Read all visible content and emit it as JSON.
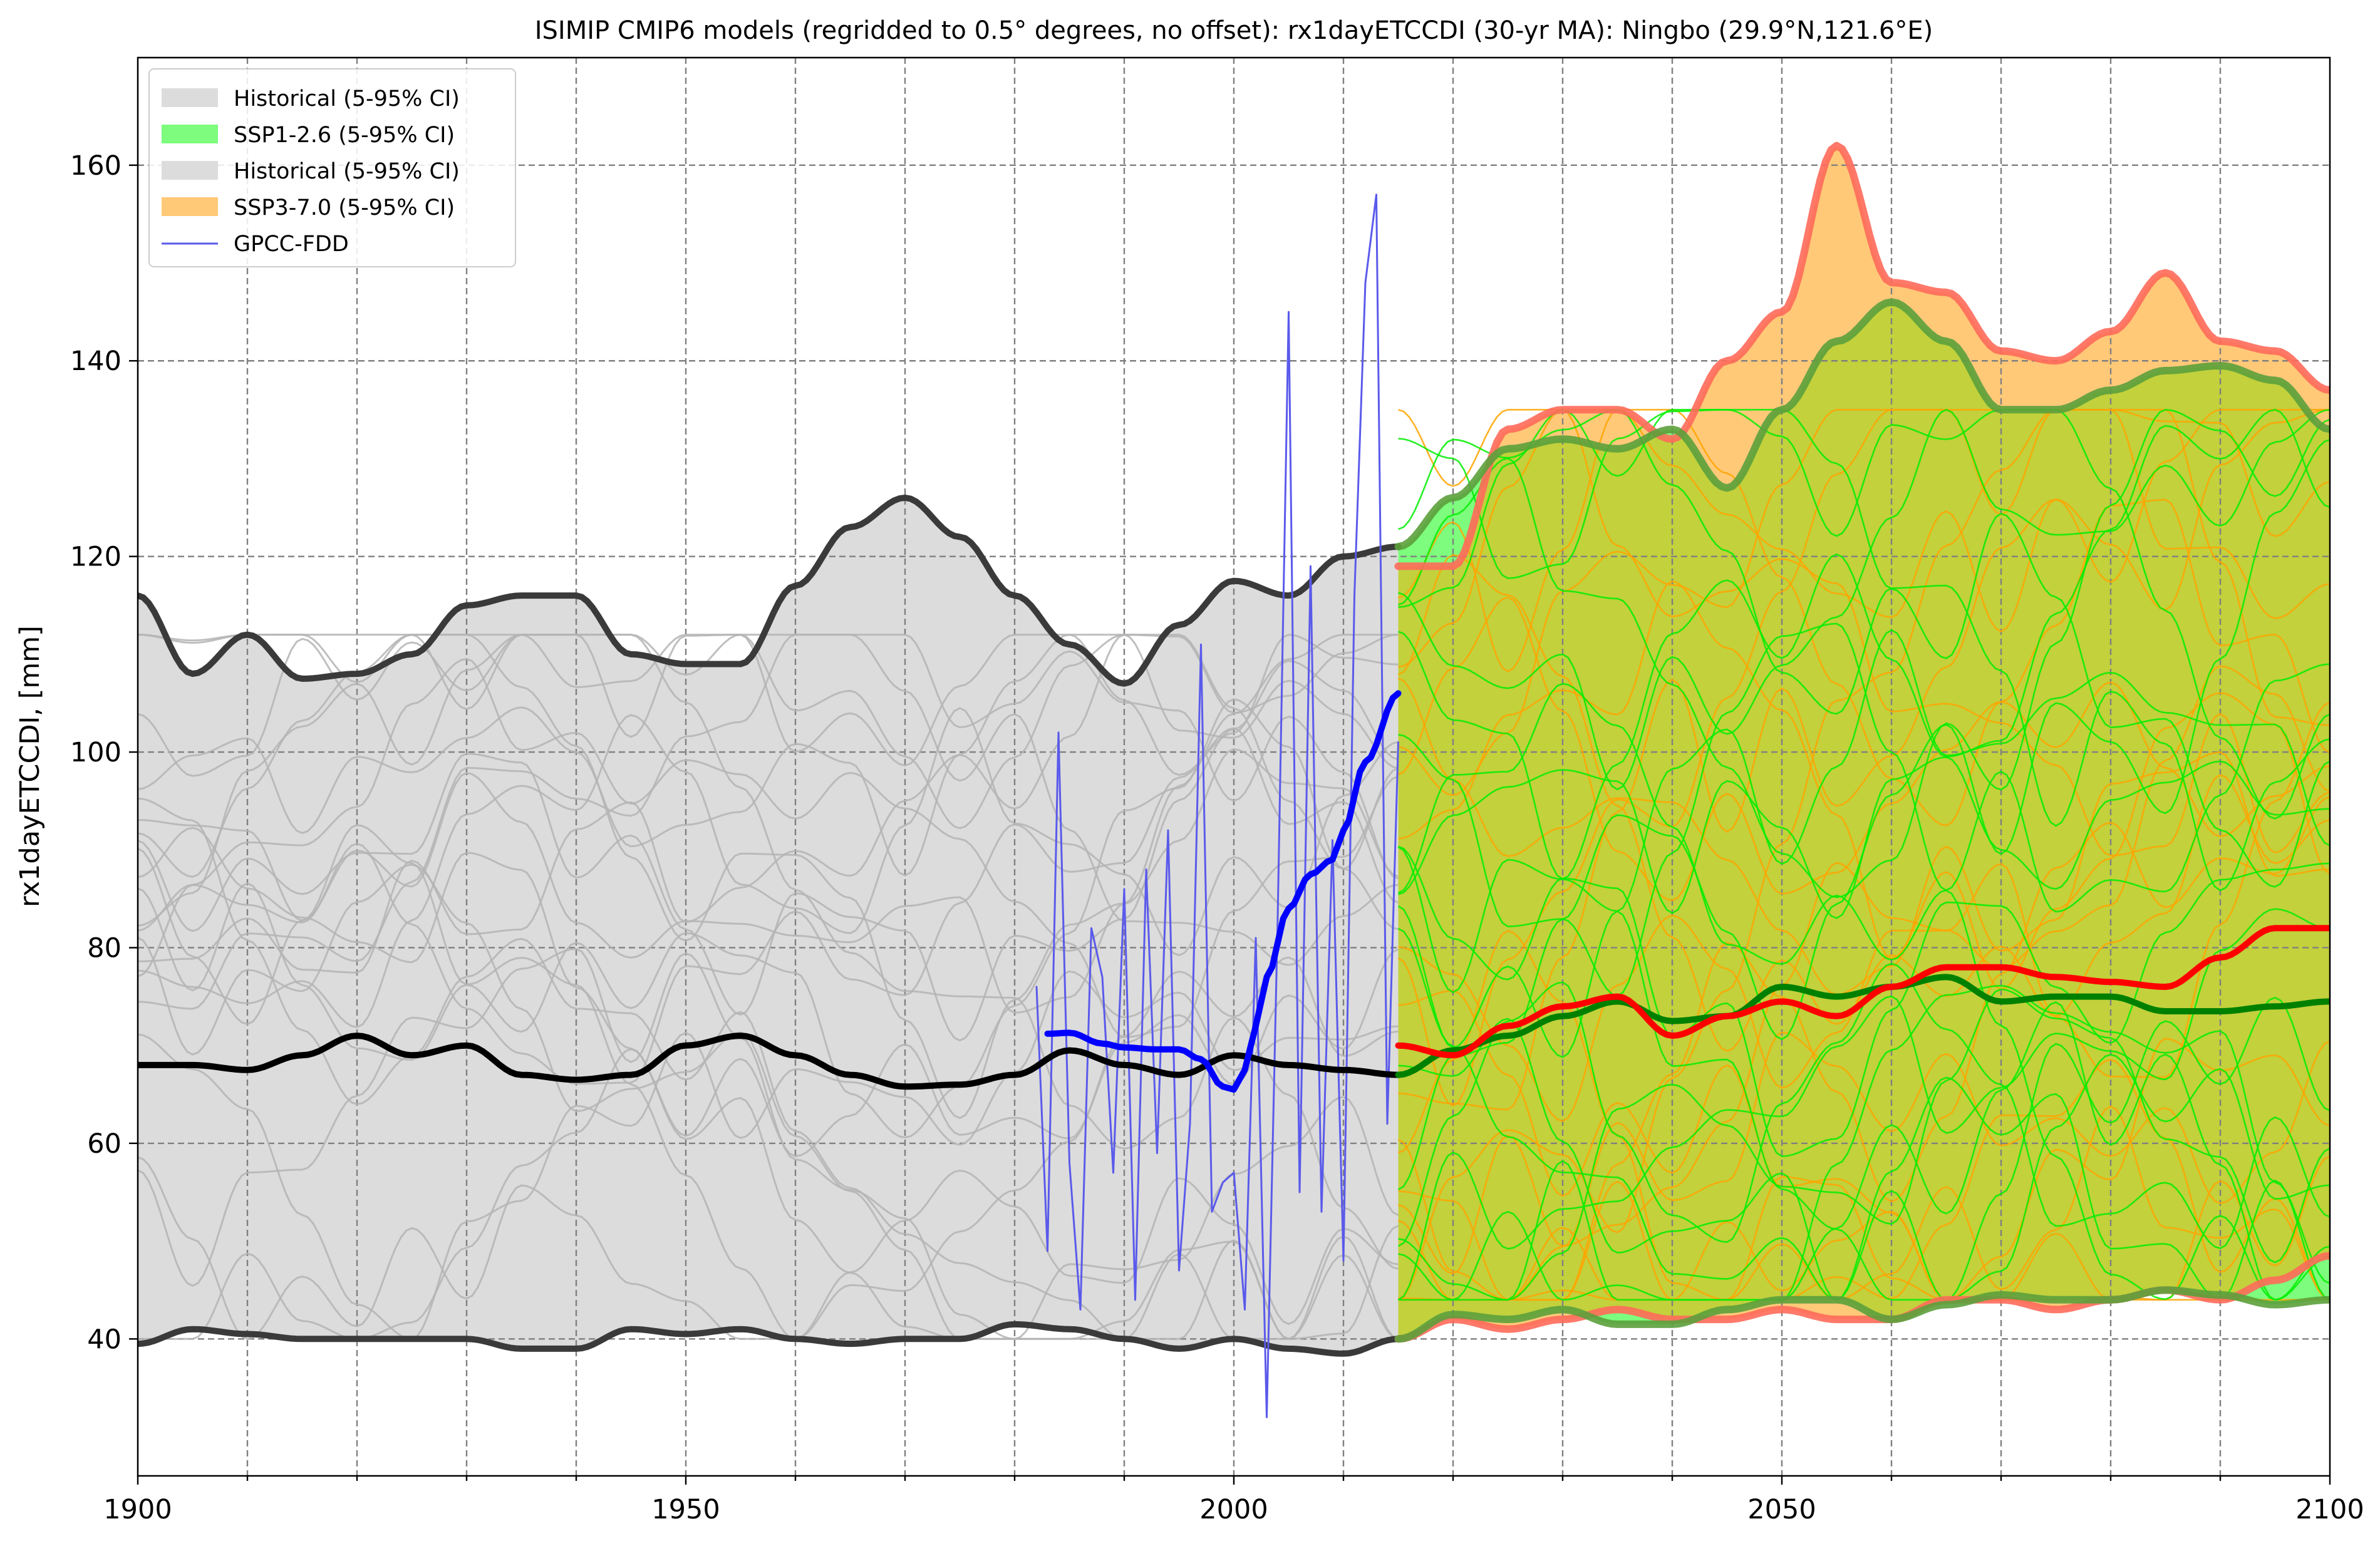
{
  "chart_data": {
    "type": "line",
    "title": "ISIMIP CMIP6 models (regridded to 0.5° degrees, no offset): rx1dayETCCDI (30-yr MA): Ningbo (29.9°N,121.6°E)",
    "xlabel": "",
    "ylabel": "rx1dayETCCDI, [mm]",
    "xlim": [
      1900,
      2100
    ],
    "ylim": [
      26,
      171
    ],
    "x_ticks": [
      1900,
      1950,
      2000,
      2050,
      2100
    ],
    "x_minor_ticks": [
      1910,
      1920,
      1930,
      1940,
      1960,
      1970,
      1980,
      1990,
      2010,
      2020,
      2030,
      2040,
      2060,
      2070,
      2080,
      2090
    ],
    "y_ticks": [
      40,
      60,
      80,
      100,
      120,
      140,
      160
    ],
    "grid": true,
    "legend_position": "top-left",
    "legend": [
      {
        "label": "Historical (5-95% CI)",
        "kind": "patch",
        "color": "#dcdcdc"
      },
      {
        "label": "SSP1-2.6 (5-95% CI)",
        "kind": "patch",
        "color": "#7dfc7d"
      },
      {
        "label": "Historical (5-95% CI)",
        "kind": "patch",
        "color": "#dcdcdc"
      },
      {
        "label": "SSP3-7.0 (5-95% CI)",
        "kind": "patch",
        "color": "#ffc978"
      },
      {
        "label": "GPCC-FDD",
        "kind": "line",
        "color": "#5a5aeb"
      }
    ],
    "colors": {
      "historical_band": "#dcdcdc",
      "historical_bound": "#3a3a3a",
      "historical_median": "#000000",
      "historical_member": "#b4b4b4",
      "ssp126_band": "#7dfc7d",
      "ssp126_bound": "#5ca03c",
      "ssp126_median": "#008000",
      "ssp126_member": "#00ee00",
      "ssp370_band": "#ffc978",
      "ssp370_bound": "#ff6a5a",
      "ssp370_median": "#ff0000",
      "ssp370_member": "#ffa500",
      "overlap_band": "#c2d13c",
      "obs": "#5a5aeb",
      "obs_ma": "#0000ff"
    },
    "series": [
      {
        "id": "historical_upper",
        "x": [
          1900,
          1905,
          1910,
          1915,
          1920,
          1925,
          1930,
          1935,
          1940,
          1945,
          1950,
          1955,
          1960,
          1965,
          1970,
          1975,
          1980,
          1985,
          1990,
          1995,
          2000,
          2005,
          2010,
          2015
        ],
        "y": [
          116,
          108,
          112,
          107.5,
          108,
          110,
          115,
          116,
          116,
          110,
          109,
          109,
          117,
          123,
          126,
          122,
          116,
          111,
          107,
          113,
          117.5,
          116,
          120,
          121
        ]
      },
      {
        "id": "historical_lower",
        "x": [
          1900,
          1905,
          1910,
          1915,
          1920,
          1925,
          1930,
          1935,
          1940,
          1945,
          1950,
          1955,
          1960,
          1965,
          1970,
          1975,
          1980,
          1985,
          1990,
          1995,
          2000,
          2005,
          2010,
          2015
        ],
        "y": [
          39.5,
          41,
          40.5,
          40,
          40,
          40,
          40,
          39,
          39,
          41,
          40.5,
          41,
          40,
          39.5,
          40,
          40,
          41.5,
          41,
          40,
          39,
          40,
          39,
          38.5,
          40
        ]
      },
      {
        "id": "historical_median",
        "x": [
          1900,
          1905,
          1910,
          1915,
          1920,
          1925,
          1930,
          1935,
          1940,
          1945,
          1950,
          1955,
          1960,
          1965,
          1970,
          1975,
          1980,
          1985,
          1990,
          1995,
          2000,
          2005,
          2010,
          2015
        ],
        "y": [
          68,
          68,
          67.5,
          69,
          71,
          69,
          70,
          67,
          66.5,
          67,
          70,
          71,
          69,
          67,
          65.8,
          66,
          67,
          69.5,
          68,
          67,
          69,
          68,
          67.5,
          67
        ]
      },
      {
        "id": "ssp126_upper",
        "x": [
          2015,
          2020,
          2025,
          2030,
          2035,
          2040,
          2045,
          2050,
          2055,
          2060,
          2065,
          2070,
          2075,
          2080,
          2085,
          2090,
          2095,
          2100
        ],
        "y": [
          121,
          126,
          131,
          132,
          131,
          133,
          127,
          135,
          142,
          146,
          142,
          135,
          135,
          137,
          139,
          139.5,
          138,
          133
        ]
      },
      {
        "id": "ssp126_lower",
        "x": [
          2015,
          2020,
          2025,
          2030,
          2035,
          2040,
          2045,
          2050,
          2055,
          2060,
          2065,
          2070,
          2075,
          2080,
          2085,
          2090,
          2095,
          2100
        ],
        "y": [
          40,
          42.5,
          42,
          43,
          41.5,
          41.5,
          43,
          44,
          44,
          42,
          43.5,
          44.5,
          44,
          44,
          45,
          44.5,
          43.5,
          44
        ]
      },
      {
        "id": "ssp126_median",
        "x": [
          2015,
          2020,
          2025,
          2030,
          2035,
          2040,
          2045,
          2050,
          2055,
          2060,
          2065,
          2070,
          2075,
          2080,
          2085,
          2090,
          2095,
          2100
        ],
        "y": [
          67,
          69.5,
          71,
          73,
          74.5,
          72.5,
          73,
          76,
          75,
          76,
          77,
          74.5,
          75,
          75,
          73.5,
          73.5,
          74,
          74.5
        ]
      },
      {
        "id": "ssp370_upper",
        "x": [
          2015,
          2020,
          2025,
          2030,
          2035,
          2040,
          2045,
          2050,
          2055,
          2060,
          2065,
          2070,
          2075,
          2080,
          2085,
          2090,
          2095,
          2100
        ],
        "y": [
          119,
          119,
          133,
          135,
          135,
          132,
          140,
          145,
          162,
          148,
          147,
          141,
          140,
          143,
          149,
          142,
          141,
          137
        ]
      },
      {
        "id": "ssp370_lower",
        "x": [
          2015,
          2020,
          2025,
          2030,
          2035,
          2040,
          2045,
          2050,
          2055,
          2060,
          2065,
          2070,
          2075,
          2080,
          2085,
          2090,
          2095,
          2100
        ],
        "y": [
          40,
          42,
          41,
          42,
          43,
          42,
          42,
          43,
          42,
          42,
          44,
          44,
          43,
          44,
          45,
          44,
          46,
          48.5
        ]
      },
      {
        "id": "ssp370_median",
        "x": [
          2015,
          2020,
          2025,
          2030,
          2035,
          2040,
          2045,
          2050,
          2055,
          2060,
          2065,
          2070,
          2075,
          2080,
          2085,
          2090,
          2095,
          2100
        ],
        "y": [
          70,
          69,
          72,
          74,
          75,
          71,
          73,
          74.5,
          73,
          76,
          78,
          78,
          77,
          76.5,
          76,
          79,
          82,
          82
        ]
      },
      {
        "id": "obs_annual",
        "name": "GPCC-FDD",
        "x": [
          1982,
          1983,
          1984,
          1985,
          1986,
          1987,
          1988,
          1989,
          1990,
          1991,
          1992,
          1993,
          1994,
          1995,
          1996,
          1997,
          1998,
          1999,
          2000,
          2001,
          2002,
          2003,
          2004,
          2005,
          2006,
          2007,
          2008,
          2009,
          2010,
          2011,
          2012,
          2013,
          2014,
          2015
        ],
        "y": [
          76,
          49,
          102,
          58,
          43,
          82,
          77,
          57,
          86,
          44,
          88,
          59,
          92,
          47,
          62,
          111,
          53,
          56,
          57,
          43,
          81,
          32,
          83,
          145,
          55,
          119,
          53,
          91,
          48,
          116,
          148,
          157,
          62,
          101
        ]
      },
      {
        "id": "obs_ma",
        "x": [
          1983,
          1985,
          1988,
          1990,
          1993,
          1995,
          1997,
          1999,
          2000,
          2001,
          2002,
          2003,
          2005,
          2007,
          2009,
          2010,
          2012,
          2015
        ],
        "y": [
          71.2,
          71.3,
          70.2,
          69.8,
          69.6,
          69.6,
          68.6,
          65.8,
          65.5,
          67.5,
          72,
          77,
          84,
          87.5,
          89,
          92,
          99,
          106
        ]
      }
    ]
  }
}
